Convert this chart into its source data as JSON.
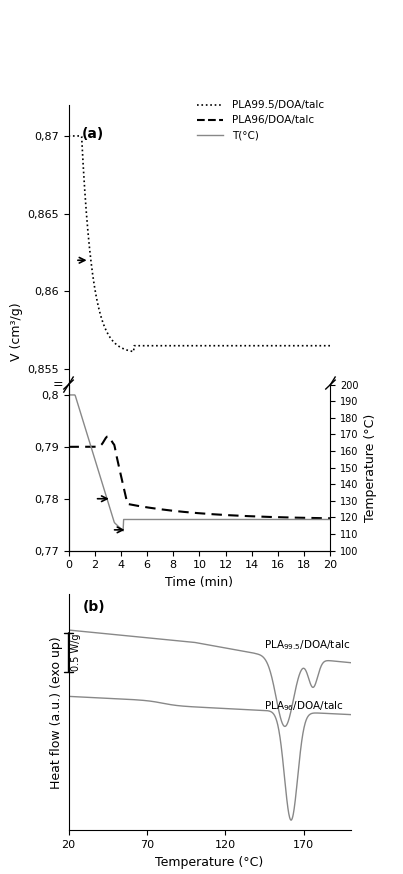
{
  "panel_a": {
    "title": "(a)",
    "xlabel": "Time (min)",
    "ylabel": "V (cm³/g)",
    "ylabel2": "Temperature (°C)",
    "xlim": [
      0,
      20
    ],
    "yticks_upper": [
      0.855,
      0.86,
      0.865,
      0.87
    ],
    "yticks_upper_labels": [
      "0,855",
      "0,86",
      "0,865",
      "0,87"
    ],
    "yticks_lower": [
      0.77,
      0.78,
      0.79,
      0.8
    ],
    "yticks_lower_labels": [
      "0,77",
      "0,78",
      "0,79",
      "0,8"
    ],
    "yticks_right": [
      100,
      110,
      120,
      130,
      140,
      150,
      160,
      170,
      180,
      190,
      200
    ],
    "xticks": [
      0,
      2,
      4,
      6,
      8,
      10,
      12,
      14,
      16,
      18,
      20
    ],
    "legend_labels": [
      "PLA99.5/DOA/talc",
      "PLA96/DOA/talc",
      "T(°C)"
    ]
  },
  "panel_b": {
    "title": "(b)",
    "xlabel": "Temperature (°C)",
    "ylabel": "Heat flow (a.u.) (exo up)",
    "xlim": [
      20,
      200
    ],
    "xticks": [
      20,
      70,
      120,
      170
    ],
    "scale_label": "0.5 W/g",
    "label1": "PLA$_{99.5}$/DOA/talc",
    "label2": "PLA$_{96}$/DOA/talc"
  },
  "line_color": "#888888",
  "bg_color": "#ffffff"
}
